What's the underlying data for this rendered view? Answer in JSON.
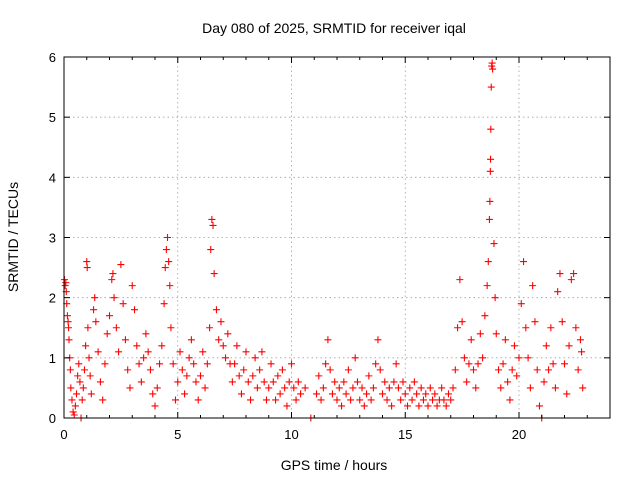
{
  "chart_data": {
    "type": "scatter",
    "title": "Day 080 of 2025, SRMTID for receiver iqal",
    "xlabel": "GPS time / hours",
    "ylabel": "SRMTID / TECUs",
    "xlim": [
      0,
      24
    ],
    "ylim": [
      0,
      6
    ],
    "xticks": [
      0,
      5,
      10,
      15,
      20
    ],
    "yticks": [
      0,
      1,
      2,
      3,
      4,
      5,
      6
    ],
    "grid": true,
    "marker": "plus",
    "color": "#ff0000",
    "series": [
      {
        "name": "SRMTID",
        "points": [
          [
            0.02,
            2.3
          ],
          [
            0.05,
            2.2
          ],
          [
            0.08,
            2.25
          ],
          [
            0.1,
            2.1
          ],
          [
            0.12,
            1.9
          ],
          [
            0.15,
            1.7
          ],
          [
            0.18,
            1.6
          ],
          [
            0.2,
            1.5
          ],
          [
            0.22,
            1.3
          ],
          [
            0.25,
            1.0
          ],
          [
            0.28,
            0.8
          ],
          [
            0.3,
            0.5
          ],
          [
            0.35,
            0.3
          ],
          [
            0.4,
            0.1
          ],
          [
            0.45,
            0.05
          ],
          [
            0.5,
            0.2
          ],
          [
            0.55,
            0.4
          ],
          [
            0.6,
            0.7
          ],
          [
            0.65,
            0.9
          ],
          [
            0.7,
            0.6
          ],
          [
            0.75,
            0.0
          ],
          [
            0.8,
            0.3
          ],
          [
            0.85,
            0.5
          ],
          [
            0.9,
            0.8
          ],
          [
            0.95,
            1.2
          ],
          [
            1.0,
            2.6
          ],
          [
            1.02,
            2.5
          ],
          [
            1.05,
            1.5
          ],
          [
            1.1,
            1.0
          ],
          [
            1.15,
            0.7
          ],
          [
            1.2,
            0.4
          ],
          [
            1.3,
            1.8
          ],
          [
            1.35,
            2.0
          ],
          [
            1.4,
            1.6
          ],
          [
            1.5,
            1.1
          ],
          [
            1.6,
            0.6
          ],
          [
            1.7,
            0.3
          ],
          [
            1.8,
            0.9
          ],
          [
            1.9,
            1.4
          ],
          [
            2.0,
            1.7
          ],
          [
            2.1,
            2.3
          ],
          [
            2.15,
            2.4
          ],
          [
            2.2,
            2.0
          ],
          [
            2.3,
            1.5
          ],
          [
            2.4,
            1.1
          ],
          [
            2.5,
            2.55
          ],
          [
            2.6,
            1.9
          ],
          [
            2.7,
            1.3
          ],
          [
            2.8,
            0.8
          ],
          [
            2.9,
            0.5
          ],
          [
            3.0,
            2.2
          ],
          [
            3.1,
            1.8
          ],
          [
            3.2,
            1.2
          ],
          [
            3.3,
            0.9
          ],
          [
            3.4,
            0.6
          ],
          [
            3.5,
            1.0
          ],
          [
            3.6,
            1.4
          ],
          [
            3.7,
            1.1
          ],
          [
            3.8,
            0.8
          ],
          [
            3.9,
            0.4
          ],
          [
            4.0,
            0.2
          ],
          [
            4.1,
            0.5
          ],
          [
            4.2,
            0.9
          ],
          [
            4.3,
            1.2
          ],
          [
            4.4,
            1.9
          ],
          [
            4.45,
            2.5
          ],
          [
            4.5,
            2.8
          ],
          [
            4.55,
            3.0
          ],
          [
            4.6,
            2.6
          ],
          [
            4.65,
            2.2
          ],
          [
            4.7,
            1.5
          ],
          [
            4.8,
            0.9
          ],
          [
            4.9,
            0.3
          ],
          [
            5.0,
            0.6
          ],
          [
            5.1,
            1.1
          ],
          [
            5.2,
            0.8
          ],
          [
            5.3,
            0.4
          ],
          [
            5.4,
            0.7
          ],
          [
            5.5,
            1.0
          ],
          [
            5.6,
            1.3
          ],
          [
            5.7,
            0.9
          ],
          [
            5.8,
            0.6
          ],
          [
            5.9,
            0.3
          ],
          [
            6.0,
            0.7
          ],
          [
            6.1,
            1.1
          ],
          [
            6.2,
            0.5
          ],
          [
            6.3,
            0.9
          ],
          [
            6.4,
            1.5
          ],
          [
            6.45,
            2.8
          ],
          [
            6.5,
            3.3
          ],
          [
            6.55,
            3.2
          ],
          [
            6.6,
            2.4
          ],
          [
            6.7,
            1.8
          ],
          [
            6.8,
            1.3
          ],
          [
            6.9,
            1.6
          ],
          [
            7.0,
            1.2
          ],
          [
            7.1,
            1.0
          ],
          [
            7.2,
            1.4
          ],
          [
            7.3,
            0.9
          ],
          [
            7.4,
            0.6
          ],
          [
            7.5,
            0.9
          ],
          [
            7.6,
            1.2
          ],
          [
            7.7,
            0.7
          ],
          [
            7.8,
            0.4
          ],
          [
            7.9,
            0.8
          ],
          [
            8.0,
            1.1
          ],
          [
            8.1,
            0.6
          ],
          [
            8.2,
            0.3
          ],
          [
            8.3,
            0.7
          ],
          [
            8.4,
            1.0
          ],
          [
            8.5,
            0.5
          ],
          [
            8.6,
            0.8
          ],
          [
            8.7,
            1.1
          ],
          [
            8.8,
            0.6
          ],
          [
            8.9,
            0.3
          ],
          [
            9.0,
            0.5
          ],
          [
            9.1,
            0.9
          ],
          [
            9.2,
            0.6
          ],
          [
            9.3,
            0.3
          ],
          [
            9.4,
            0.7
          ],
          [
            9.5,
            0.4
          ],
          [
            9.6,
            0.8
          ],
          [
            9.7,
            0.5
          ],
          [
            9.8,
            0.2
          ],
          [
            9.9,
            0.6
          ],
          [
            10.0,
            0.9
          ],
          [
            10.1,
            0.5
          ],
          [
            10.2,
            0.3
          ],
          [
            10.3,
            0.6
          ],
          [
            10.4,
            0.4
          ],
          [
            10.6,
            0.5
          ],
          [
            10.85,
            0.0
          ],
          [
            11.1,
            0.4
          ],
          [
            11.2,
            0.7
          ],
          [
            11.3,
            0.3
          ],
          [
            11.4,
            0.5
          ],
          [
            11.5,
            0.9
          ],
          [
            11.6,
            1.3
          ],
          [
            11.7,
            0.8
          ],
          [
            11.8,
            0.4
          ],
          [
            11.9,
            0.6
          ],
          [
            12.0,
            0.3
          ],
          [
            12.1,
            0.5
          ],
          [
            12.2,
            0.2
          ],
          [
            12.3,
            0.6
          ],
          [
            12.4,
            0.4
          ],
          [
            12.5,
            0.8
          ],
          [
            12.6,
            0.3
          ],
          [
            12.7,
            0.5
          ],
          [
            12.8,
            1.0
          ],
          [
            12.9,
            0.6
          ],
          [
            13.0,
            0.3
          ],
          [
            13.1,
            0.5
          ],
          [
            13.2,
            0.2
          ],
          [
            13.3,
            0.4
          ],
          [
            13.4,
            0.7
          ],
          [
            13.5,
            0.3
          ],
          [
            13.6,
            0.5
          ],
          [
            13.7,
            0.9
          ],
          [
            13.8,
            1.3
          ],
          [
            13.9,
            0.8
          ],
          [
            14.0,
            0.4
          ],
          [
            14.1,
            0.6
          ],
          [
            14.2,
            0.3
          ],
          [
            14.3,
            0.5
          ],
          [
            14.4,
            0.2
          ],
          [
            14.5,
            0.6
          ],
          [
            14.6,
            0.9
          ],
          [
            14.7,
            0.5
          ],
          [
            14.8,
            0.3
          ],
          [
            14.9,
            0.6
          ],
          [
            15.0,
            0.4
          ],
          [
            15.1,
            0.2
          ],
          [
            15.2,
            0.5
          ],
          [
            15.3,
            0.3
          ],
          [
            15.4,
            0.6
          ],
          [
            15.5,
            0.4
          ],
          [
            15.6,
            0.2
          ],
          [
            15.7,
            0.5
          ],
          [
            15.8,
            0.3
          ],
          [
            15.9,
            0.4
          ],
          [
            16.0,
            0.2
          ],
          [
            16.1,
            0.5
          ],
          [
            16.2,
            0.3
          ],
          [
            16.3,
            0.4
          ],
          [
            16.4,
            0.2
          ],
          [
            16.5,
            0.3
          ],
          [
            16.6,
            0.5
          ],
          [
            16.7,
            0.3
          ],
          [
            16.8,
            0.2
          ],
          [
            16.9,
            0.4
          ],
          [
            17.0,
            0.3
          ],
          [
            17.1,
            0.5
          ],
          [
            17.2,
            0.8
          ],
          [
            17.3,
            1.5
          ],
          [
            17.4,
            2.3
          ],
          [
            17.5,
            1.6
          ],
          [
            17.6,
            1.0
          ],
          [
            17.7,
            0.6
          ],
          [
            17.8,
            0.9
          ],
          [
            17.9,
            1.3
          ],
          [
            18.0,
            0.8
          ],
          [
            18.1,
            0.5
          ],
          [
            18.2,
            0.9
          ],
          [
            18.3,
            1.4
          ],
          [
            18.4,
            1.0
          ],
          [
            18.5,
            1.7
          ],
          [
            18.6,
            2.2
          ],
          [
            18.65,
            2.6
          ],
          [
            18.7,
            3.3
          ],
          [
            18.72,
            3.6
          ],
          [
            18.74,
            4.1
          ],
          [
            18.75,
            4.3
          ],
          [
            18.76,
            4.8
          ],
          [
            18.78,
            5.5
          ],
          [
            18.8,
            5.85
          ],
          [
            18.82,
            5.9
          ],
          [
            18.84,
            5.8
          ],
          [
            18.9,
            2.9
          ],
          [
            18.95,
            2.0
          ],
          [
            19.0,
            1.4
          ],
          [
            19.1,
            0.8
          ],
          [
            19.2,
            0.5
          ],
          [
            19.3,
            0.9
          ],
          [
            19.4,
            1.3
          ],
          [
            19.5,
            0.6
          ],
          [
            19.6,
            0.3
          ],
          [
            19.7,
            0.8
          ],
          [
            19.8,
            1.2
          ],
          [
            19.9,
            0.7
          ],
          [
            20.0,
            1.0
          ],
          [
            20.1,
            1.9
          ],
          [
            20.2,
            2.6
          ],
          [
            20.3,
            1.5
          ],
          [
            20.4,
            1.0
          ],
          [
            20.5,
            0.5
          ],
          [
            20.6,
            2.2
          ],
          [
            20.7,
            1.6
          ],
          [
            20.8,
            0.8
          ],
          [
            20.9,
            0.2
          ],
          [
            21.0,
            0.0
          ],
          [
            21.1,
            0.6
          ],
          [
            21.2,
            1.2
          ],
          [
            21.3,
            0.8
          ],
          [
            21.4,
            1.5
          ],
          [
            21.5,
            0.9
          ],
          [
            21.6,
            0.5
          ],
          [
            21.7,
            2.1
          ],
          [
            21.8,
            2.4
          ],
          [
            21.9,
            1.6
          ],
          [
            22.0,
            0.9
          ],
          [
            22.1,
            0.4
          ],
          [
            22.2,
            1.2
          ],
          [
            22.3,
            2.3
          ],
          [
            22.4,
            2.4
          ],
          [
            22.5,
            1.5
          ],
          [
            22.6,
            0.8
          ],
          [
            22.7,
            1.3
          ],
          [
            22.75,
            1.1
          ],
          [
            22.8,
            0.5
          ]
        ]
      }
    ]
  }
}
